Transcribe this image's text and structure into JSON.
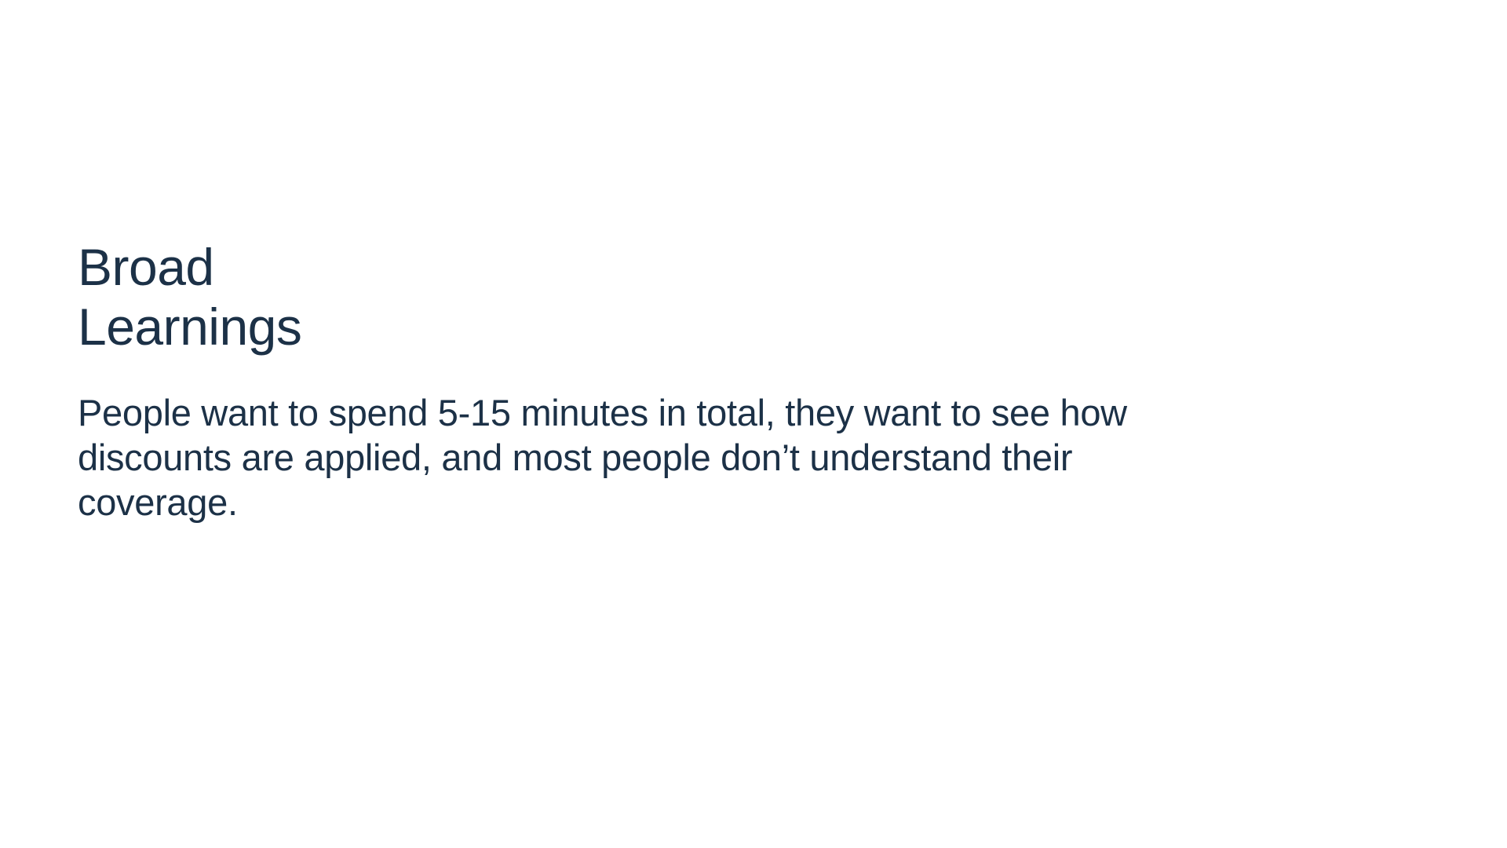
{
  "slide": {
    "title_line1": "Broad",
    "title_line2": "Learnings",
    "body": "People want to spend 5-15 minutes in total, they want to see how discounts are applied, and most people don’t understand their coverage."
  },
  "colors": {
    "text": "#1c3147",
    "background": "#ffffff"
  }
}
